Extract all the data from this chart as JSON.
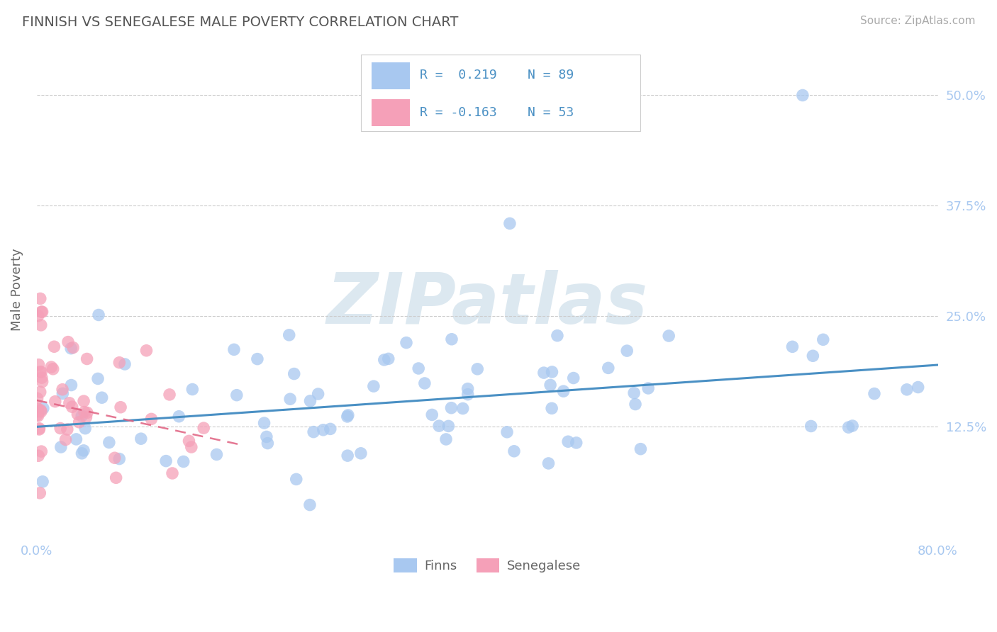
{
  "title": "FINNISH VS SENEGALESE MALE POVERTY CORRELATION CHART",
  "source_text": "Source: ZipAtlas.com",
  "ylabel": "Male Poverty",
  "xmin": 0.0,
  "xmax": 0.8,
  "ymin": 0.0,
  "ymax": 0.56,
  "yticks": [
    0.125,
    0.25,
    0.375,
    0.5
  ],
  "ytick_labels": [
    "12.5%",
    "25.0%",
    "37.5%",
    "50.0%"
  ],
  "xtick_labels": [
    "0.0%",
    "80.0%"
  ],
  "legend_R_finn": "R =  0.219",
  "legend_N_finn": "N = 89",
  "legend_R_sen": "R = -0.163",
  "legend_N_sen": "N = 53",
  "finn_color": "#a8c8f0",
  "finn_line_color": "#4a90c4",
  "senegal_color": "#f5a0b8",
  "senegal_line_color": "#e06080",
  "finn_N": 89,
  "senegal_N": 53,
  "background_color": "#ffffff",
  "title_color": "#555555",
  "source_color": "#aaaaaa",
  "axis_label_color": "#666666",
  "tick_color": "#a8c8f0",
  "grid_color": "#cccccc",
  "legend_text_color": "#4a90c4",
  "watermark_text": "ZIPatlas",
  "watermark_color": "#dce8f0"
}
